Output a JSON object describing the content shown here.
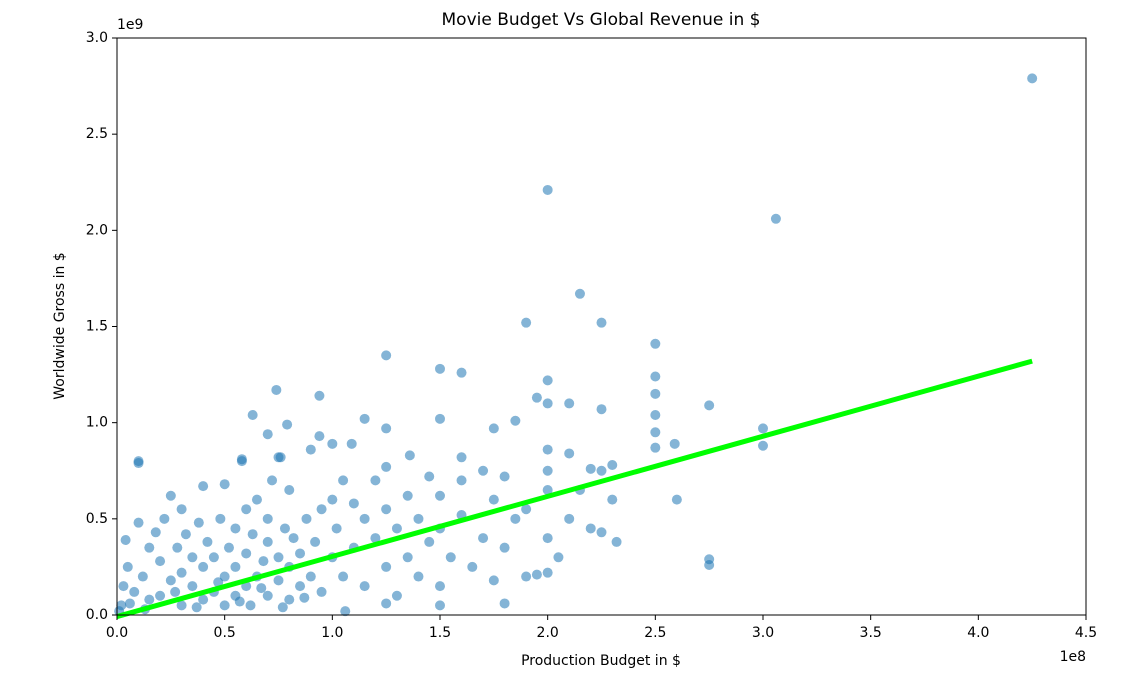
{
  "chart_data": {
    "type": "scatter",
    "title": "Movie Budget Vs Global Revenue in $",
    "x_label": "Production Budget in $",
    "y_label": "Worldwide Gross in $",
    "x_offset_label": "1e8",
    "y_offset_label": "1e9",
    "xlim": [
      0,
      4.5
    ],
    "ylim": [
      0,
      3.0
    ],
    "xticks": [
      {
        "value": 0,
        "label": "0.0"
      },
      0.5,
      {
        "value": 1,
        "label": "1.0"
      },
      1.5,
      {
        "value": 2,
        "label": "2.0"
      },
      2.5,
      {
        "value": 3,
        "label": "3.0"
      },
      3.5,
      {
        "value": 4,
        "label": "4.0"
      },
      4.5
    ],
    "yticks": [
      {
        "value": 0,
        "label": "0.0"
      },
      0.5,
      {
        "value": 1,
        "label": "1.0"
      },
      1.5,
      {
        "value": 2,
        "label": "2.0"
      },
      2.5,
      {
        "value": 3,
        "label": "3.0"
      }
    ],
    "points": {
      "color": "#1f77b4",
      "x": [
        4.25,
        2.0,
        3.06,
        2.15,
        2.25,
        1.9,
        2.5,
        1.25,
        1.5,
        1.6,
        2.0,
        2.5,
        0.74,
        0.94,
        2.5,
        1.95,
        2.0,
        2.1,
        2.75,
        0.63,
        2.5,
        2.25,
        1.5,
        1.15,
        1.85,
        0.79,
        1.25,
        3.0,
        0.7,
        1.75,
        0.94,
        3.0,
        2.59,
        1.09,
        1.0,
        2.5,
        0.1,
        0.58,
        0.76,
        1.36,
        1.6,
        2.0,
        2.1,
        2.3,
        2.2,
        2.75,
        2.75,
        2.6,
        2.32,
        2.25,
        2.0,
        1.95,
        1.8,
        1.5,
        1.25,
        1.06,
        0.02,
        0.03,
        0.05,
        0.04,
        0.08,
        0.1,
        0.1,
        0.12,
        0.15,
        0.15,
        0.18,
        0.2,
        0.2,
        0.22,
        0.25,
        0.25,
        0.28,
        0.3,
        0.3,
        0.3,
        0.32,
        0.35,
        0.35,
        0.38,
        0.4,
        0.4,
        0.4,
        0.42,
        0.45,
        0.45,
        0.48,
        0.5,
        0.5,
        0.5,
        0.52,
        0.55,
        0.55,
        0.55,
        0.58,
        0.6,
        0.6,
        0.6,
        0.62,
        0.63,
        0.65,
        0.65,
        0.68,
        0.7,
        0.7,
        0.7,
        0.72,
        0.75,
        0.75,
        0.75,
        0.78,
        0.8,
        0.8,
        0.8,
        0.82,
        0.85,
        0.85,
        0.88,
        0.9,
        0.9,
        0.92,
        0.95,
        0.95,
        1.0,
        1.0,
        1.02,
        1.05,
        1.05,
        1.1,
        1.1,
        1.15,
        1.15,
        1.2,
        1.2,
        1.25,
        1.25,
        1.25,
        1.3,
        1.3,
        1.35,
        1.35,
        1.4,
        1.4,
        1.45,
        1.45,
        1.5,
        1.5,
        1.5,
        1.55,
        1.6,
        1.6,
        1.65,
        1.7,
        1.7,
        1.75,
        1.75,
        1.8,
        1.8,
        1.85,
        1.9,
        1.9,
        2.0,
        2.0,
        2.0,
        2.05,
        2.1,
        2.15,
        2.2,
        2.25,
        2.3,
        2.5,
        0.01,
        0.06,
        0.13,
        0.27,
        0.37,
        0.47,
        0.57,
        0.67,
        0.77,
        0.87
      ],
      "y": [
        2.79,
        2.21,
        2.06,
        1.67,
        1.52,
        1.52,
        1.41,
        1.35,
        1.28,
        1.26,
        1.22,
        1.24,
        1.17,
        1.14,
        1.15,
        1.13,
        1.1,
        1.1,
        1.09,
        1.04,
        1.04,
        1.07,
        1.02,
        1.02,
        1.01,
        0.99,
        0.97,
        0.97,
        0.94,
        0.97,
        0.93,
        0.88,
        0.89,
        0.89,
        0.89,
        0.87,
        0.8,
        0.81,
        0.82,
        0.83,
        0.82,
        0.86,
        0.84,
        0.78,
        0.76,
        0.29,
        0.26,
        0.6,
        0.38,
        0.43,
        0.22,
        0.21,
        0.06,
        0.05,
        0.06,
        0.02,
        0.05,
        0.15,
        0.25,
        0.39,
        0.12,
        0.79,
        0.48,
        0.2,
        0.08,
        0.35,
        0.43,
        0.28,
        0.1,
        0.5,
        0.18,
        0.62,
        0.35,
        0.05,
        0.22,
        0.55,
        0.42,
        0.15,
        0.3,
        0.48,
        0.08,
        0.25,
        0.67,
        0.38,
        0.12,
        0.3,
        0.5,
        0.05,
        0.2,
        0.68,
        0.35,
        0.1,
        0.25,
        0.45,
        0.8,
        0.15,
        0.32,
        0.55,
        0.05,
        0.42,
        0.2,
        0.6,
        0.28,
        0.1,
        0.38,
        0.5,
        0.7,
        0.18,
        0.3,
        0.82,
        0.45,
        0.08,
        0.25,
        0.65,
        0.4,
        0.15,
        0.32,
        0.5,
        0.2,
        0.86,
        0.38,
        0.12,
        0.55,
        0.3,
        0.6,
        0.45,
        0.2,
        0.7,
        0.35,
        0.58,
        0.15,
        0.5,
        0.4,
        0.7,
        0.25,
        0.55,
        0.77,
        0.1,
        0.45,
        0.3,
        0.62,
        0.2,
        0.5,
        0.38,
        0.72,
        0.15,
        0.45,
        0.62,
        0.3,
        0.52,
        0.7,
        0.25,
        0.4,
        0.75,
        0.18,
        0.6,
        0.35,
        0.72,
        0.5,
        0.55,
        0.2,
        0.4,
        0.65,
        0.75,
        0.3,
        0.5,
        0.65,
        0.45,
        0.75,
        0.6,
        0.95,
        0.02,
        0.06,
        0.03,
        0.12,
        0.04,
        0.17,
        0.07,
        0.14,
        0.04,
        0.09
      ]
    },
    "fit_line": {
      "color": "#00ff00",
      "x": [
        0,
        4.25
      ],
      "y": [
        -0.008,
        1.32
      ]
    }
  }
}
